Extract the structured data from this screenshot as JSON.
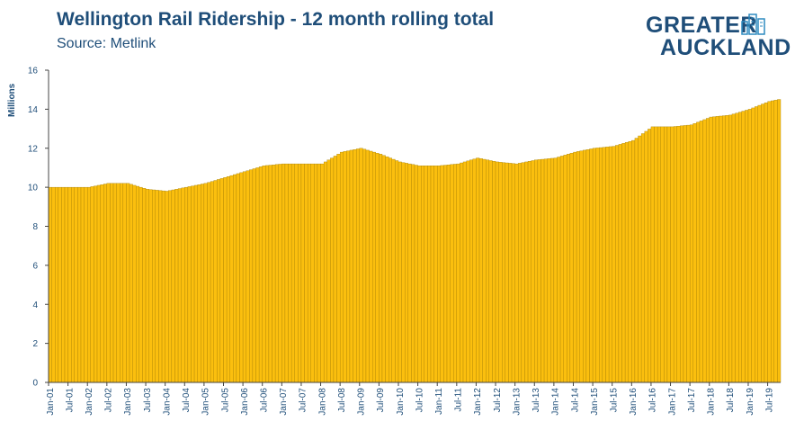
{
  "header": {
    "title": "Wellington Rail Ridership - 12 month rolling total",
    "subtitle": "Source: Metlink"
  },
  "logo": {
    "line1": "GREATER",
    "line2": "AUCKLAND"
  },
  "colors": {
    "bar": "#fbbf0e",
    "bar_edge": "#a07a00",
    "text": "#1f4e79",
    "axis": "#444444"
  },
  "chart_data": {
    "type": "bar",
    "title": "Wellington Rail Ridership - 12 month rolling total",
    "ylabel": "Millions",
    "xlabel": "",
    "ylim": [
      0,
      16
    ],
    "yticks": [
      0,
      2,
      4,
      6,
      8,
      10,
      12,
      14,
      16
    ],
    "xlim": [
      "Jan-01",
      "Oct-19"
    ],
    "x_tick_labels": [
      "Jan-01",
      "Jul-01",
      "Jan-02",
      "Jul-02",
      "Jan-03",
      "Jul-03",
      "Jan-04",
      "Jul-04",
      "Jan-05",
      "Jul-05",
      "Jan-06",
      "Jul-06",
      "Jan-07",
      "Jul-07",
      "Jan-08",
      "Jul-08",
      "Jan-09",
      "Jul-09",
      "Jan-10",
      "Jul-10",
      "Jan-11",
      "Jul-11",
      "Jan-12",
      "Jul-12",
      "Jan-13",
      "Jul-13",
      "Jan-14",
      "Jul-14",
      "Jan-15",
      "Jul-15",
      "Jan-16",
      "Jul-16",
      "Jan-17",
      "Jul-17",
      "Jan-18",
      "Jul-18",
      "Jan-19",
      "Jul-19"
    ],
    "anchors": [
      [
        "Jan-01",
        10.0
      ],
      [
        "Jul-01",
        10.0
      ],
      [
        "Jan-02",
        10.0
      ],
      [
        "Jul-02",
        10.2
      ],
      [
        "Jan-03",
        10.2
      ],
      [
        "Jul-03",
        9.9
      ],
      [
        "Jan-04",
        9.8
      ],
      [
        "Jul-04",
        10.0
      ],
      [
        "Jan-05",
        10.2
      ],
      [
        "Jul-05",
        10.5
      ],
      [
        "Jan-06",
        10.8
      ],
      [
        "Jul-06",
        11.1
      ],
      [
        "Jan-07",
        11.2
      ],
      [
        "Jul-07",
        11.2
      ],
      [
        "Jan-08",
        11.2
      ],
      [
        "Jul-08",
        11.8
      ],
      [
        "Jan-09",
        12.0
      ],
      [
        "Jul-09",
        11.7
      ],
      [
        "Jan-10",
        11.3
      ],
      [
        "Jul-10",
        11.1
      ],
      [
        "Jan-11",
        11.1
      ],
      [
        "Jul-11",
        11.2
      ],
      [
        "Jan-12",
        11.5
      ],
      [
        "Jul-12",
        11.3
      ],
      [
        "Jan-13",
        11.2
      ],
      [
        "Jul-13",
        11.4
      ],
      [
        "Jan-14",
        11.5
      ],
      [
        "Jul-14",
        11.8
      ],
      [
        "Jan-15",
        12.0
      ],
      [
        "Jul-15",
        12.1
      ],
      [
        "Jan-16",
        12.4
      ],
      [
        "Jul-16",
        13.1
      ],
      [
        "Jan-17",
        13.1
      ],
      [
        "Jul-17",
        13.2
      ],
      [
        "Jan-18",
        13.6
      ],
      [
        "Jul-18",
        13.7
      ],
      [
        "Jan-19",
        14.0
      ],
      [
        "Jul-19",
        14.4
      ],
      [
        "Oct-19",
        14.5
      ]
    ]
  }
}
